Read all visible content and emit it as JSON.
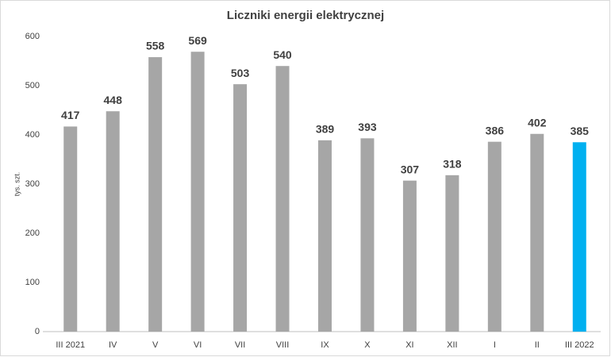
{
  "chart_data": {
    "type": "bar",
    "title": "Liczniki energii elektrycznej",
    "y_label": "tys. szt.",
    "categories": [
      "III 2021",
      "IV",
      "V",
      "VI",
      "VII",
      "VIII",
      "IX",
      "X",
      "XI",
      "XII",
      "I",
      "II",
      "III 2022"
    ],
    "values": [
      417,
      448,
      558,
      569,
      503,
      540,
      389,
      393,
      307,
      318,
      386,
      402,
      385
    ],
    "colors": [
      "#a6a6a6",
      "#a6a6a6",
      "#a6a6a6",
      "#a6a6a6",
      "#a6a6a6",
      "#a6a6a6",
      "#a6a6a6",
      "#a6a6a6",
      "#a6a6a6",
      "#a6a6a6",
      "#a6a6a6",
      "#a6a6a6",
      "#00b0f0"
    ],
    "ylim": [
      0,
      600
    ],
    "yticks": [
      0,
      100,
      200,
      300,
      400,
      500,
      600
    ],
    "grid": false,
    "data_labels": true
  }
}
